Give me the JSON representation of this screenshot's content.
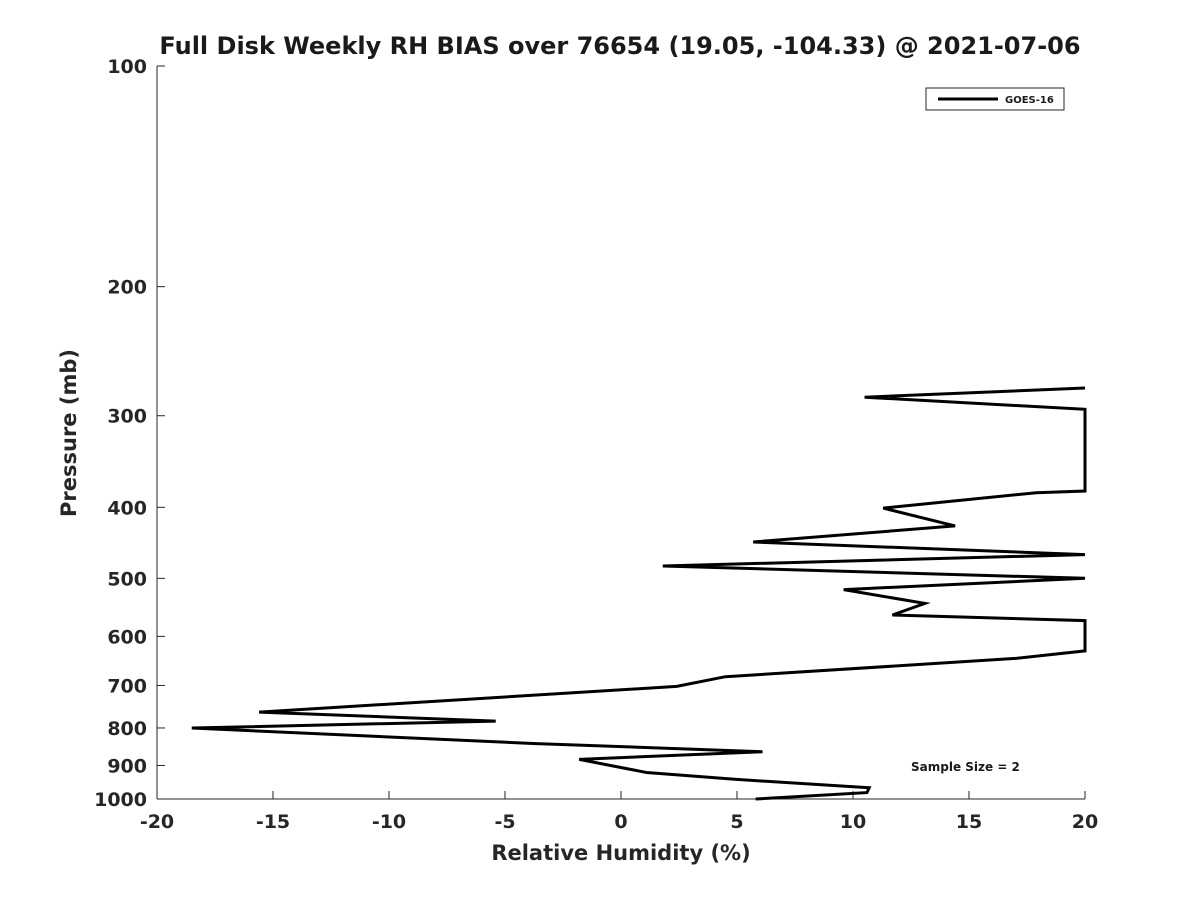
{
  "chart_data": {
    "type": "line",
    "title": "Full Disk Weekly RH BIAS over 76654 (19.05, -104.33) @ 2021-07-06",
    "xlabel": "Relative Humidity (%)",
    "ylabel": "Pressure (mb)",
    "xlim": [
      -20,
      20
    ],
    "ylim": [
      100,
      1000
    ],
    "yscale": "log",
    "y_reversed": true,
    "grid": false,
    "x_ticks": [
      -20,
      -15,
      -10,
      -5,
      0,
      5,
      10,
      15,
      20
    ],
    "x_tick_labels": [
      "-20",
      "-15",
      "-10",
      "-5",
      "0",
      "5",
      "10",
      "15",
      "20"
    ],
    "y_ticks": [
      100,
      200,
      300,
      400,
      500,
      600,
      700,
      800,
      900,
      1000
    ],
    "y_tick_labels": [
      "100",
      "200",
      "300",
      "400",
      "500",
      "600",
      "700",
      "800",
      "900",
      "1000"
    ],
    "legend": {
      "position": "top-right",
      "entries": [
        "GOES-16"
      ]
    },
    "annotation": "Sample Size = 2",
    "series": [
      {
        "name": "GOES-16",
        "color": "#000000",
        "points": [
          {
            "x": 20.0,
            "y": 275
          },
          {
            "x": 10.5,
            "y": 283
          },
          {
            "x": 20.0,
            "y": 294
          },
          {
            "x": 20.0,
            "y": 380
          },
          {
            "x": 17.9,
            "y": 382
          },
          {
            "x": 11.3,
            "y": 401
          },
          {
            "x": 14.4,
            "y": 424
          },
          {
            "x": 5.7,
            "y": 446
          },
          {
            "x": 20.0,
            "y": 464
          },
          {
            "x": 1.8,
            "y": 481
          },
          {
            "x": 20.0,
            "y": 500
          },
          {
            "x": 9.6,
            "y": 518
          },
          {
            "x": 13.1,
            "y": 541
          },
          {
            "x": 11.7,
            "y": 561
          },
          {
            "x": 20.0,
            "y": 571
          },
          {
            "x": 20.0,
            "y": 628
          },
          {
            "x": 17.0,
            "y": 643
          },
          {
            "x": 4.5,
            "y": 681
          },
          {
            "x": 2.4,
            "y": 702
          },
          {
            "x": -15.6,
            "y": 761
          },
          {
            "x": -5.4,
            "y": 783
          },
          {
            "x": -18.5,
            "y": 800
          },
          {
            "x": -3.8,
            "y": 840
          },
          {
            "x": 6.1,
            "y": 862
          },
          {
            "x": -1.8,
            "y": 883
          },
          {
            "x": 1.1,
            "y": 920
          },
          {
            "x": 4.9,
            "y": 940
          },
          {
            "x": 10.7,
            "y": 965
          },
          {
            "x": 10.6,
            "y": 980
          },
          {
            "x": 5.8,
            "y": 1000
          }
        ]
      }
    ]
  }
}
